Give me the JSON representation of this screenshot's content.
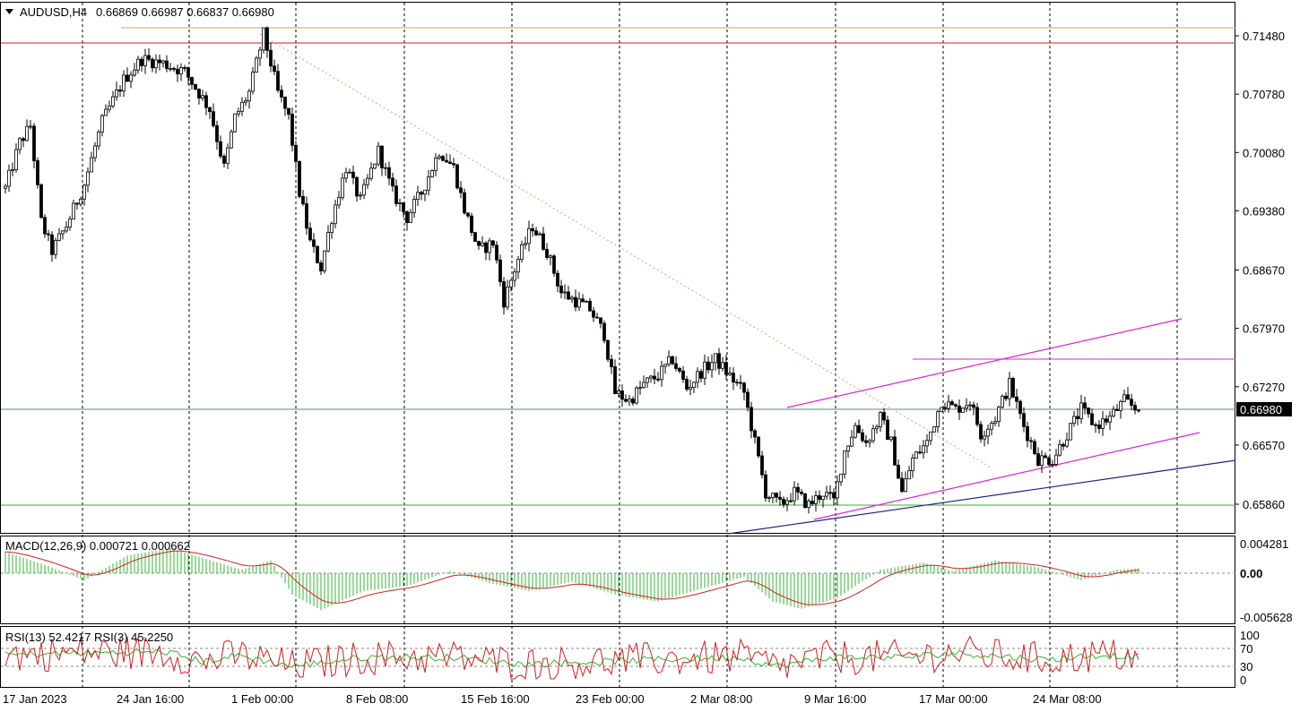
{
  "header": {
    "symbol": "AUDUSD,H4",
    "ohlc": "0.66869 0.66987 0.66837 0.66980"
  },
  "macd": {
    "label": "MACD(12,26,9) 0.000721 0.000662",
    "axis_ticks": [
      "0.004281",
      "0.00",
      "-0.005628"
    ]
  },
  "rsi": {
    "label": "RSI(13) 52.4217  RSI(3) 45.2250",
    "axis_ticks": [
      "100",
      "70",
      "30",
      "0"
    ]
  },
  "colors": {
    "bull": "#2e9e2e",
    "bear": "#7a0f0f",
    "price_line": "#4f8f6f",
    "resistance": "#d81b1b",
    "resistance_top": "#d4a050",
    "support": "#2cb52c",
    "channel": "#e020e0",
    "trend": "#1a237e",
    "macd_signal": "#d42020",
    "macd_hist": "#33b533",
    "rsi13": "#33b533",
    "rsi3": "#d42020"
  },
  "chart_data": {
    "type": "candlestick",
    "symbol": "AUDUSD",
    "timeframe": "H4",
    "x_tick_labels": [
      "17 Jan 2023",
      "24 Jan 16:00",
      "1 Feb 00:00",
      "8 Feb 08:00",
      "15 Feb 16:00",
      "23 Feb 00:00",
      "2 Mar 08:00",
      "9 Mar 16:00",
      "17 Mar 00:00",
      "24 Mar 08:00"
    ],
    "y_tick_labels": [
      "0.71480",
      "0.70780",
      "0.70080",
      "0.69380",
      "0.68670",
      "0.67970",
      "0.67270",
      "0.66570",
      "0.65860"
    ],
    "ylim": [
      0.6545,
      0.7165
    ],
    "current_price": "0.66980",
    "horizontal_levels": [
      {
        "price": 0.7148,
        "role": "resistance"
      },
      {
        "price": 0.7166,
        "role": "resistance_top"
      },
      {
        "price": 0.658,
        "role": "support"
      },
      {
        "price": 0.6759,
        "role": "channel_high"
      }
    ],
    "anchors": [
      {
        "i": 0,
        "p": 0.6965
      },
      {
        "i": 4,
        "p": 0.702
      },
      {
        "i": 7,
        "p": 0.704
      },
      {
        "i": 10,
        "p": 0.6925
      },
      {
        "i": 13,
        "p": 0.689
      },
      {
        "i": 17,
        "p": 0.692
      },
      {
        "i": 22,
        "p": 0.697
      },
      {
        "i": 27,
        "p": 0.7045
      },
      {
        "i": 33,
        "p": 0.7095
      },
      {
        "i": 38,
        "p": 0.712
      },
      {
        "i": 44,
        "p": 0.7115
      },
      {
        "i": 50,
        "p": 0.7105
      },
      {
        "i": 57,
        "p": 0.706
      },
      {
        "i": 61,
        "p": 0.699
      },
      {
        "i": 64,
        "p": 0.705
      },
      {
        "i": 68,
        "p": 0.708
      },
      {
        "i": 72,
        "p": 0.715
      },
      {
        "i": 76,
        "p": 0.708
      },
      {
        "i": 79,
        "p": 0.705
      },
      {
        "i": 82,
        "p": 0.696
      },
      {
        "i": 85,
        "p": 0.69
      },
      {
        "i": 88,
        "p": 0.687
      },
      {
        "i": 91,
        "p": 0.693
      },
      {
        "i": 95,
        "p": 0.699
      },
      {
        "i": 99,
        "p": 0.695
      },
      {
        "i": 104,
        "p": 0.701
      },
      {
        "i": 108,
        "p": 0.696
      },
      {
        "i": 112,
        "p": 0.693
      },
      {
        "i": 116,
        "p": 0.696
      },
      {
        "i": 121,
        "p": 0.701
      },
      {
        "i": 125,
        "p": 0.699
      },
      {
        "i": 128,
        "p": 0.694
      },
      {
        "i": 132,
        "p": 0.689
      },
      {
        "i": 136,
        "p": 0.69
      },
      {
        "i": 139,
        "p": 0.683
      },
      {
        "i": 143,
        "p": 0.688
      },
      {
        "i": 147,
        "p": 0.692
      },
      {
        "i": 151,
        "p": 0.689
      },
      {
        "i": 155,
        "p": 0.684
      },
      {
        "i": 159,
        "p": 0.683
      },
      {
        "i": 163,
        "p": 0.682
      },
      {
        "i": 167,
        "p": 0.679
      },
      {
        "i": 170,
        "p": 0.672
      },
      {
        "i": 174,
        "p": 0.671
      },
      {
        "i": 178,
        "p": 0.673
      },
      {
        "i": 182,
        "p": 0.674
      },
      {
        "i": 186,
        "p": 0.676
      },
      {
        "i": 190,
        "p": 0.6725
      },
      {
        "i": 194,
        "p": 0.6745
      },
      {
        "i": 198,
        "p": 0.676
      },
      {
        "i": 202,
        "p": 0.674
      },
      {
        "i": 206,
        "p": 0.672
      },
      {
        "i": 209,
        "p": 0.666
      },
      {
        "i": 212,
        "p": 0.66
      },
      {
        "i": 216,
        "p": 0.6585
      },
      {
        "i": 220,
        "p": 0.66
      },
      {
        "i": 224,
        "p": 0.6585
      },
      {
        "i": 228,
        "p": 0.66
      },
      {
        "i": 231,
        "p": 0.659
      },
      {
        "i": 234,
        "p": 0.665
      },
      {
        "i": 237,
        "p": 0.668
      },
      {
        "i": 240,
        "p": 0.666
      },
      {
        "i": 244,
        "p": 0.669
      },
      {
        "i": 247,
        "p": 0.666
      },
      {
        "i": 250,
        "p": 0.66
      },
      {
        "i": 253,
        "p": 0.664
      },
      {
        "i": 257,
        "p": 0.666
      },
      {
        "i": 261,
        "p": 0.671
      },
      {
        "i": 265,
        "p": 0.67
      },
      {
        "i": 269,
        "p": 0.671
      },
      {
        "i": 272,
        "p": 0.667
      },
      {
        "i": 276,
        "p": 0.669
      },
      {
        "i": 280,
        "p": 0.673
      },
      {
        "i": 284,
        "p": 0.668
      },
      {
        "i": 288,
        "p": 0.664
      },
      {
        "i": 292,
        "p": 0.664
      },
      {
        "i": 296,
        "p": 0.667
      },
      {
        "i": 300,
        "p": 0.67
      },
      {
        "i": 304,
        "p": 0.668
      },
      {
        "i": 308,
        "p": 0.669
      },
      {
        "i": 312,
        "p": 0.671
      },
      {
        "i": 316,
        "p": 0.6698
      }
    ],
    "macd": {
      "ylim": [
        -0.0065,
        0.005
      ],
      "anchors": [
        {
          "i": 0,
          "v": 0.003
        },
        {
          "i": 12,
          "v": 0.001
        },
        {
          "i": 22,
          "v": -0.001
        },
        {
          "i": 34,
          "v": 0.0025
        },
        {
          "i": 46,
          "v": 0.0035
        },
        {
          "i": 56,
          "v": 0.002
        },
        {
          "i": 66,
          "v": 0.0005
        },
        {
          "i": 74,
          "v": 0.0018
        },
        {
          "i": 80,
          "v": -0.003
        },
        {
          "i": 88,
          "v": -0.0052
        },
        {
          "i": 100,
          "v": -0.0025
        },
        {
          "i": 112,
          "v": -0.0018
        },
        {
          "i": 124,
          "v": 0.0003
        },
        {
          "i": 136,
          "v": -0.0015
        },
        {
          "i": 146,
          "v": -0.0025
        },
        {
          "i": 158,
          "v": -0.0012
        },
        {
          "i": 170,
          "v": -0.003
        },
        {
          "i": 182,
          "v": -0.004
        },
        {
          "i": 194,
          "v": -0.0022
        },
        {
          "i": 206,
          "v": -0.0005
        },
        {
          "i": 214,
          "v": -0.004
        },
        {
          "i": 222,
          "v": -0.005
        },
        {
          "i": 232,
          "v": -0.0035
        },
        {
          "i": 244,
          "v": 0.0005
        },
        {
          "i": 256,
          "v": 0.0015
        },
        {
          "i": 264,
          "v": 0.0003
        },
        {
          "i": 276,
          "v": 0.0018
        },
        {
          "i": 288,
          "v": 0.0008
        },
        {
          "i": 300,
          "v": -0.001
        },
        {
          "i": 310,
          "v": 0.0005
        },
        {
          "i": 316,
          "v": 0.0007
        }
      ]
    },
    "rsi13_anchors": [
      {
        "i": 0,
        "v": 55
      },
      {
        "i": 20,
        "v": 60
      },
      {
        "i": 45,
        "v": 62
      },
      {
        "i": 55,
        "v": 40
      },
      {
        "i": 65,
        "v": 55
      },
      {
        "i": 80,
        "v": 30
      },
      {
        "i": 100,
        "v": 50
      },
      {
        "i": 125,
        "v": 50
      },
      {
        "i": 145,
        "v": 35
      },
      {
        "i": 165,
        "v": 40
      },
      {
        "i": 180,
        "v": 45
      },
      {
        "i": 205,
        "v": 50
      },
      {
        "i": 215,
        "v": 30
      },
      {
        "i": 230,
        "v": 50
      },
      {
        "i": 250,
        "v": 50
      },
      {
        "i": 265,
        "v": 60
      },
      {
        "i": 290,
        "v": 45
      },
      {
        "i": 305,
        "v": 55
      },
      {
        "i": 316,
        "v": 52
      }
    ]
  }
}
